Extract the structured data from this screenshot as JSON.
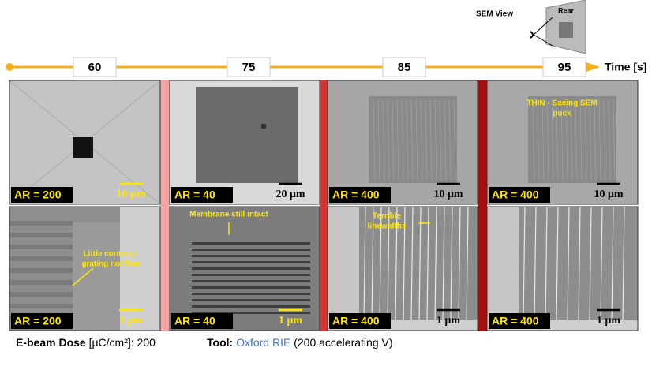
{
  "sem_view": {
    "label": "SEM View",
    "rear": "Rear"
  },
  "timeline": {
    "axis_label": "Time [s]",
    "times": [
      60,
      75,
      85,
      95
    ]
  },
  "panels": [
    [
      {
        "ar": "AR = 200",
        "scale": "10 μm"
      },
      {
        "ar": "AR = 200",
        "scale": "1 μm",
        "annotation": [
          "Little contrast,",
          "grating not free"
        ]
      }
    ],
    [
      {
        "ar": "AR = 40",
        "scale": "20 μm"
      },
      {
        "ar": "AR = 40",
        "scale": "1 μm",
        "annotation": [
          "Membrane still intact"
        ]
      }
    ],
    [
      {
        "ar": "AR = 400",
        "scale": "10 μm"
      },
      {
        "ar": "AR = 400",
        "scale": "1 μm",
        "annotation": [
          "Terrible",
          "linewidths"
        ]
      }
    ],
    [
      {
        "ar": "AR = 400",
        "scale": "10 μm",
        "annotation": [
          "THIN - Seeing SEM",
          "puck"
        ]
      },
      {
        "ar": "AR = 400",
        "scale": "1 μm"
      }
    ]
  ],
  "footer": {
    "dose_label": "E-beam Dose",
    "dose_value": "[μC/cm²]: 200",
    "tool_label": "Tool:",
    "tool_name": "Oxford RIE",
    "tool_detail": "(200 accelerating V)"
  }
}
